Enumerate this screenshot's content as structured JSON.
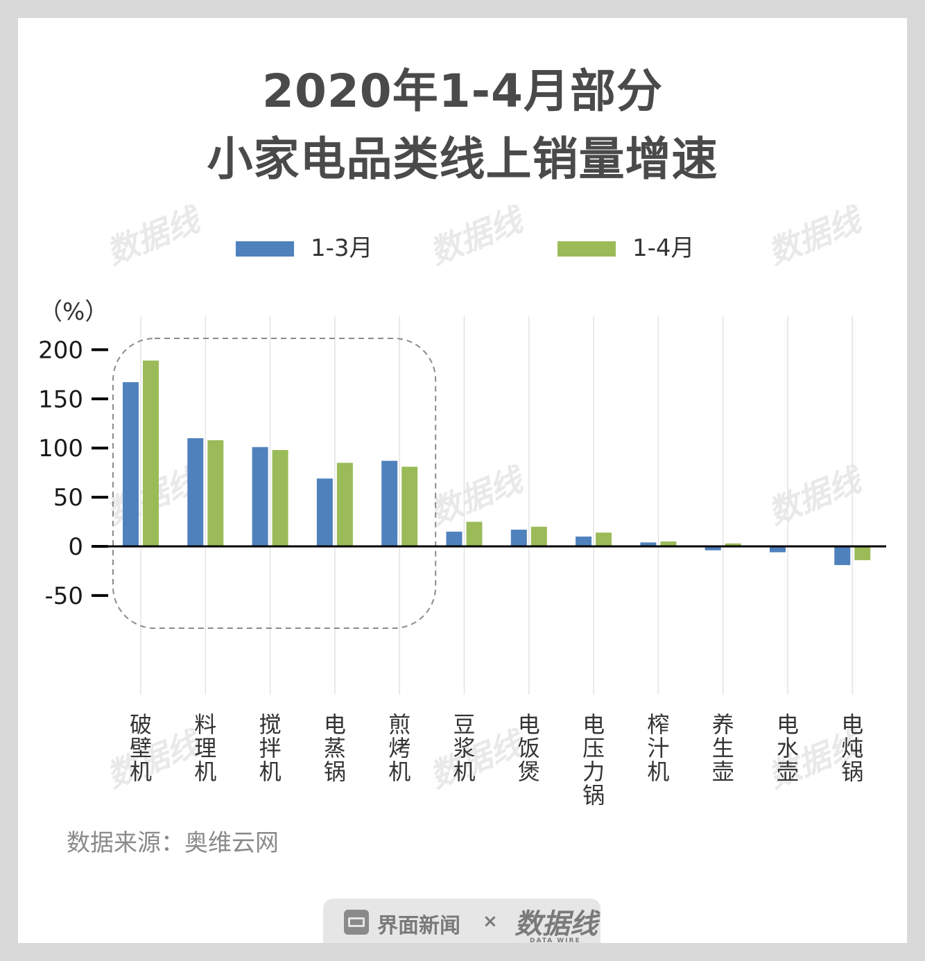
{
  "title": {
    "line1": "2020年1-4月部分",
    "line2": "小家电品类线上销量增速"
  },
  "legend": [
    {
      "label": "1-3月",
      "color": "#4f81bd"
    },
    {
      "label": "1-4月",
      "color": "#9bbb59"
    }
  ],
  "unit_label": "（%）",
  "source": "数据来源：奥维云网",
  "watermark": "数据线",
  "footer": {
    "brand": "界面新闻",
    "separator": "×",
    "partner": "数据线",
    "partner_sub": "DATA WIRE"
  },
  "chart_data": {
    "type": "bar",
    "ylim": [
      -50,
      200
    ],
    "yticks": [
      200,
      150,
      100,
      50,
      0,
      -50
    ],
    "categories": [
      "破壁机",
      "料理机",
      "搅拌机",
      "电蒸锅",
      "煎烤机",
      "豆浆机",
      "电饭煲",
      "电压力锅",
      "榨汁机",
      "养生壶",
      "电水壶",
      "电炖锅"
    ],
    "series": [
      {
        "name": "1-3月",
        "color": "#4f81bd",
        "values": [
          167,
          110,
          101,
          69,
          87,
          15,
          17,
          10,
          4,
          -4,
          -6,
          -19
        ]
      },
      {
        "name": "1-4月",
        "color": "#9bbb59",
        "values": [
          189,
          108,
          98,
          85,
          81,
          25,
          20,
          14,
          5,
          3,
          0,
          -14
        ]
      }
    ],
    "highlight": {
      "from": "破壁机",
      "to": "煎烤机",
      "style": "dashed-box"
    }
  }
}
